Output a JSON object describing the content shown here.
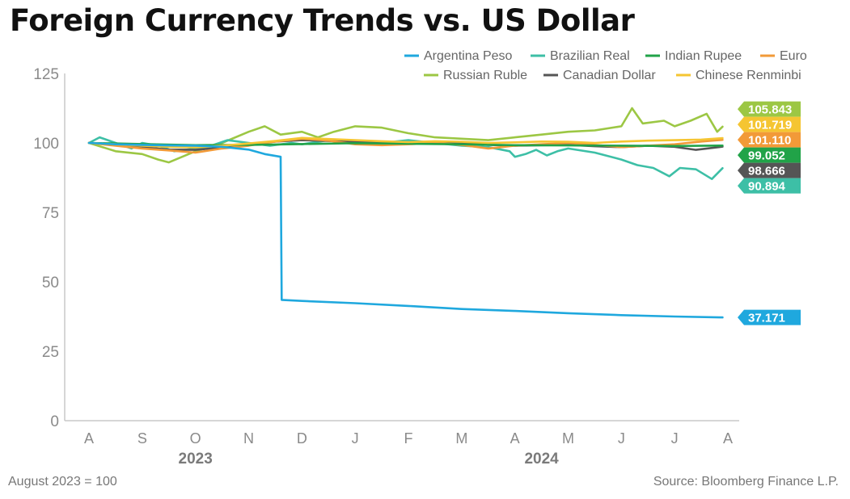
{
  "title": "Foreign Currency Trends vs. US Dollar",
  "footnote_left": "August 2023 = 100",
  "footnote_right": "Source: Bloomberg Finance L.P.",
  "chart_data": {
    "type": "line",
    "title": "Foreign Currency Trends vs. US Dollar",
    "xlabel": "",
    "ylabel": "",
    "ylim": [
      0,
      125
    ],
    "yticks": [
      0,
      25,
      50,
      75,
      100,
      125
    ],
    "xtick_labels": [
      "A",
      "S",
      "O",
      "N",
      "D",
      "J",
      "F",
      "M",
      "A",
      "M",
      "J",
      "J",
      "A"
    ],
    "year_labels": [
      {
        "label": "2023",
        "under_tick": 2
      },
      {
        "label": "2024",
        "under_tick": 8.5
      }
    ],
    "grid": false,
    "legend_position": "top-right",
    "series": [
      {
        "name": "Argentina Peso",
        "color": "#1fa8de",
        "end_value": 37.171,
        "end_label": "37.171",
        "points": [
          [
            0,
            100
          ],
          [
            0.5,
            99.5
          ],
          [
            1,
            99.3
          ],
          [
            1.5,
            99.1
          ],
          [
            2,
            99
          ],
          [
            2.5,
            98.6
          ],
          [
            3,
            97.6
          ],
          [
            3.3,
            96
          ],
          [
            3.6,
            95
          ],
          [
            3.62,
            43.5
          ],
          [
            4,
            43.1
          ],
          [
            5,
            42.3
          ],
          [
            6,
            41.3
          ],
          [
            7,
            40.2
          ],
          [
            8,
            39.5
          ],
          [
            9,
            38.7
          ],
          [
            10,
            38
          ],
          [
            11,
            37.5
          ],
          [
            11.9,
            37.171
          ]
        ]
      },
      {
        "name": "Brazilian Real",
        "color": "#3dbfa6",
        "end_value": 90.894,
        "end_label": "90.894",
        "points": [
          [
            0,
            100
          ],
          [
            0.2,
            102
          ],
          [
            0.5,
            100
          ],
          [
            0.8,
            98
          ],
          [
            1,
            100
          ],
          [
            1.3,
            99
          ],
          [
            1.6,
            97
          ],
          [
            2,
            98
          ],
          [
            2.3,
            99
          ],
          [
            2.6,
            101
          ],
          [
            3,
            100
          ],
          [
            3.4,
            99
          ],
          [
            3.8,
            100
          ],
          [
            4,
            99.5
          ],
          [
            4.5,
            101
          ],
          [
            5,
            100.5
          ],
          [
            5.5,
            100
          ],
          [
            6,
            101
          ],
          [
            6.5,
            100
          ],
          [
            7,
            99
          ],
          [
            7.5,
            98.5
          ],
          [
            7.9,
            97
          ],
          [
            8,
            95
          ],
          [
            8.2,
            96
          ],
          [
            8.4,
            97.5
          ],
          [
            8.6,
            95.5
          ],
          [
            8.8,
            97
          ],
          [
            9,
            98
          ],
          [
            9.5,
            96.5
          ],
          [
            10,
            94
          ],
          [
            10.3,
            92
          ],
          [
            10.6,
            91
          ],
          [
            10.9,
            88
          ],
          [
            11.1,
            91
          ],
          [
            11.4,
            90.5
          ],
          [
            11.7,
            87
          ],
          [
            11.9,
            90.894
          ]
        ]
      },
      {
        "name": "Indian Rupee",
        "color": "#21a348",
        "end_value": 99.052,
        "end_label": "99.052",
        "points": [
          [
            0,
            100
          ],
          [
            1,
            99.6
          ],
          [
            2,
            99.2
          ],
          [
            3,
            99.3
          ],
          [
            4,
            99.6
          ],
          [
            5,
            99.9
          ],
          [
            6,
            99.7
          ],
          [
            7,
            99.5
          ],
          [
            8,
            99.2
          ],
          [
            9,
            99.1
          ],
          [
            10,
            99
          ],
          [
            11,
            98.9
          ],
          [
            11.9,
            99.052
          ]
        ]
      },
      {
        "name": "Euro",
        "color": "#f29a38",
        "end_value": 101.11,
        "end_label": "101.110",
        "points": [
          [
            0,
            100
          ],
          [
            0.5,
            99
          ],
          [
            1,
            98
          ],
          [
            1.5,
            97.3
          ],
          [
            2,
            96.5
          ],
          [
            2.5,
            98
          ],
          [
            3,
            99
          ],
          [
            3.5,
            100.5
          ],
          [
            4,
            101.5
          ],
          [
            4.5,
            100.8
          ],
          [
            5,
            99.5
          ],
          [
            5.5,
            99.2
          ],
          [
            6,
            99.5
          ],
          [
            6.5,
            100
          ],
          [
            7,
            99.3
          ],
          [
            7.5,
            98
          ],
          [
            8,
            99
          ],
          [
            8.5,
            99.5
          ],
          [
            9,
            100
          ],
          [
            9.5,
            99.3
          ],
          [
            10,
            98.5
          ],
          [
            10.5,
            99
          ],
          [
            11,
            99.5
          ],
          [
            11.5,
            100.5
          ],
          [
            11.9,
            101.11
          ]
        ]
      },
      {
        "name": "Russian Ruble",
        "color": "#9cc744",
        "end_value": 105.843,
        "end_label": "105.843",
        "points": [
          [
            0,
            100
          ],
          [
            0.5,
            97
          ],
          [
            1,
            96
          ],
          [
            1.3,
            94
          ],
          [
            1.5,
            93
          ],
          [
            2,
            97
          ],
          [
            2.5,
            100
          ],
          [
            3,
            104
          ],
          [
            3.3,
            106
          ],
          [
            3.6,
            103
          ],
          [
            4,
            104
          ],
          [
            4.3,
            102
          ],
          [
            4.6,
            104
          ],
          [
            5,
            106
          ],
          [
            5.5,
            105.5
          ],
          [
            6,
            103.5
          ],
          [
            6.5,
            102
          ],
          [
            7,
            101.5
          ],
          [
            7.5,
            101
          ],
          [
            8,
            102
          ],
          [
            8.5,
            103
          ],
          [
            9,
            104
          ],
          [
            9.5,
            104.5
          ],
          [
            10,
            106
          ],
          [
            10.2,
            112.5
          ],
          [
            10.4,
            107
          ],
          [
            10.8,
            108
          ],
          [
            11,
            106
          ],
          [
            11.3,
            108
          ],
          [
            11.6,
            110.5
          ],
          [
            11.8,
            104
          ],
          [
            11.9,
            105.843
          ]
        ]
      },
      {
        "name": "Canadian Dollar",
        "color": "#555555",
        "end_value": 98.666,
        "end_label": "98.666",
        "points": [
          [
            0,
            100
          ],
          [
            0.5,
            99.5
          ],
          [
            1,
            98.5
          ],
          [
            1.5,
            97.6
          ],
          [
            2,
            97.5
          ],
          [
            2.5,
            98.3
          ],
          [
            3,
            99.5
          ],
          [
            3.5,
            100.5
          ],
          [
            4,
            101
          ],
          [
            4.5,
            100.7
          ],
          [
            5,
            100.4
          ],
          [
            5.5,
            100
          ],
          [
            6,
            100.2
          ],
          [
            6.5,
            100.4
          ],
          [
            7,
            100
          ],
          [
            7.5,
            99.3
          ],
          [
            8,
            99
          ],
          [
            8.5,
            99.2
          ],
          [
            9,
            99.3
          ],
          [
            9.5,
            98.8
          ],
          [
            10,
            98.5
          ],
          [
            10.5,
            99
          ],
          [
            11,
            98.6
          ],
          [
            11.4,
            97.5
          ],
          [
            11.9,
            98.666
          ]
        ]
      },
      {
        "name": "Chinese Renminbi",
        "color": "#f5c532",
        "end_value": 101.719,
        "end_label": "101.719",
        "points": [
          [
            0,
            100
          ],
          [
            0.5,
            99.5
          ],
          [
            1,
            99
          ],
          [
            1.5,
            98.6
          ],
          [
            2,
            98.4
          ],
          [
            2.5,
            99
          ],
          [
            3,
            99.8
          ],
          [
            3.5,
            100.7
          ],
          [
            4,
            101.8
          ],
          [
            4.5,
            101.4
          ],
          [
            5,
            101
          ],
          [
            5.5,
            100.6
          ],
          [
            6,
            100.3
          ],
          [
            6.5,
            100.6
          ],
          [
            7,
            100.4
          ],
          [
            7.5,
            100
          ],
          [
            8,
            100.2
          ],
          [
            8.5,
            100.5
          ],
          [
            9,
            100.4
          ],
          [
            9.5,
            100
          ],
          [
            10,
            100.5
          ],
          [
            10.5,
            100.8
          ],
          [
            11,
            101
          ],
          [
            11.5,
            101.2
          ],
          [
            11.9,
            101.719
          ]
        ]
      }
    ]
  }
}
